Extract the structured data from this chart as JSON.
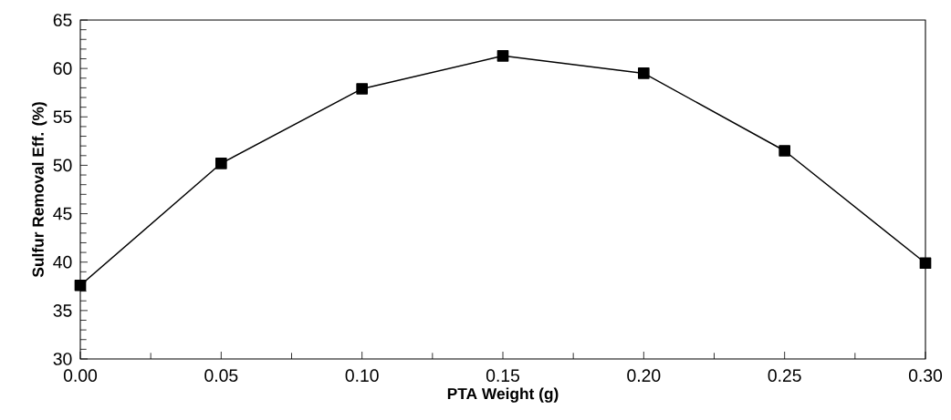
{
  "chart_data": {
    "type": "line",
    "xlabel": "PTA Weight (g)",
    "ylabel": "Sulfur Removal Eff. (%)",
    "x": [
      0.0,
      0.05,
      0.1,
      0.15,
      0.2,
      0.25,
      0.3
    ],
    "series": [
      {
        "color": "#000000",
        "values": [
          37.6,
          50.2,
          57.9,
          61.3,
          59.5,
          51.5,
          39.9
        ]
      }
    ],
    "xlim": [
      0,
      0.3
    ],
    "ylim": [
      30,
      65
    ],
    "xticks": [
      {
        "value": 0,
        "label": "0.00"
      },
      {
        "value": 0.05,
        "label": "0.05"
      },
      {
        "value": 0.1,
        "label": "0.10"
      },
      {
        "value": 0.15,
        "label": "0.15"
      },
      {
        "value": 0.2,
        "label": "0.20"
      },
      {
        "value": 0.25,
        "label": "0.25"
      },
      {
        "value": 0.3,
        "label": "0.30"
      }
    ],
    "yticks": [
      30,
      35,
      40,
      45,
      50,
      55,
      60,
      65
    ],
    "marker": "square",
    "line_style": "solid"
  }
}
